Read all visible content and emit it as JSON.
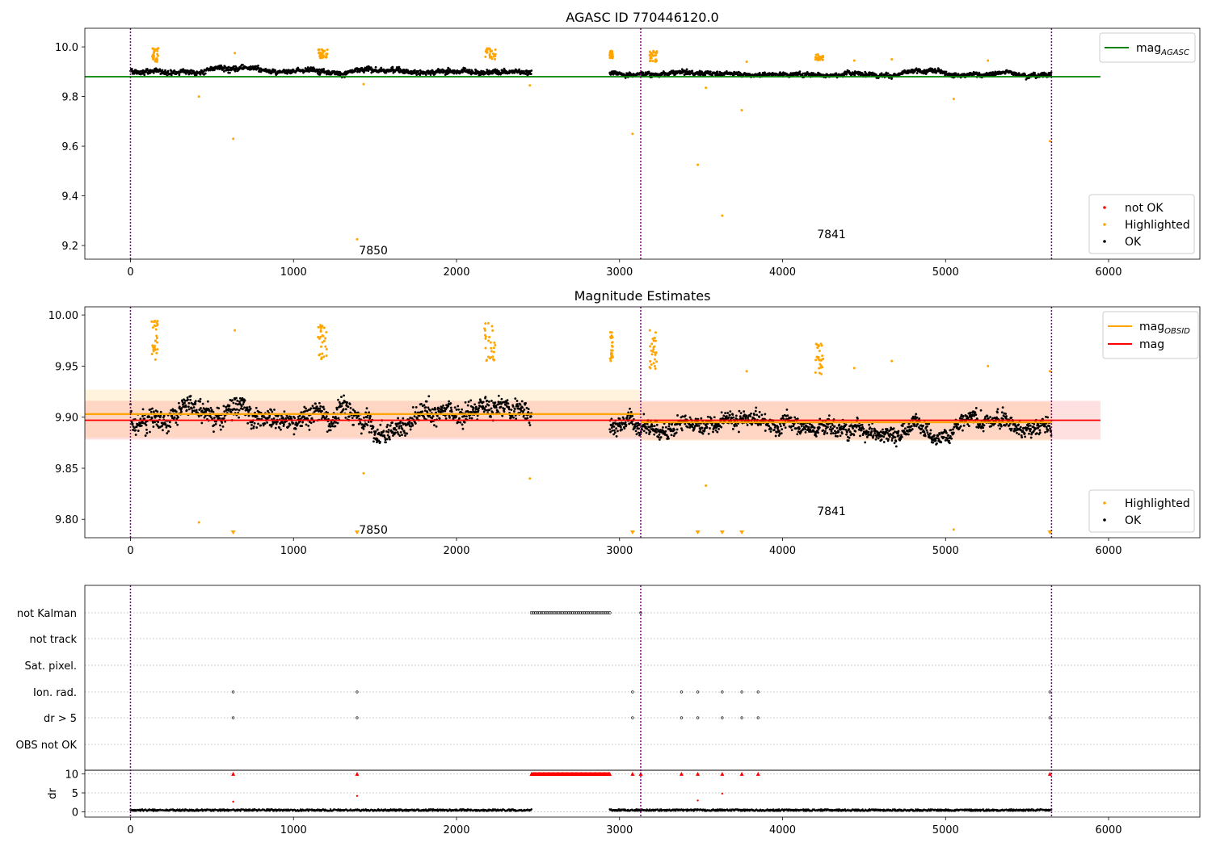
{
  "chart_data": [
    {
      "type": "scatter",
      "title": "AGASC ID 770446120.0",
      "xlim": [
        -280,
        6560
      ],
      "ylim": [
        9.145,
        10.075
      ],
      "x_ticks": [
        0,
        1000,
        2000,
        3000,
        4000,
        5000,
        6000
      ],
      "x_tick_labels": [
        "0",
        "1000",
        "2000",
        "3000",
        "4000",
        "5000",
        "6000"
      ],
      "y_ticks": [
        9.2,
        9.4,
        9.6,
        9.8,
        10.0
      ],
      "y_tick_labels": [
        "9.2",
        "9.4",
        "9.6",
        "9.8",
        "10.0"
      ],
      "obs_boundaries": [
        0,
        3130,
        5650
      ],
      "obs_labels": [
        {
          "text": "7850",
          "x": 1490,
          "y": 9.18
        },
        {
          "text": "7841",
          "x": 4300,
          "y": 9.245
        }
      ],
      "ok_segments": [
        {
          "x0": 0,
          "x1": 2460,
          "mean": 9.905,
          "spread": 0.018
        },
        {
          "x0": 2940,
          "x1": 5650,
          "mean": 9.895,
          "spread": 0.014
        }
      ],
      "highlight_clusters": [
        {
          "x0": 130,
          "x1": 170,
          "ymin": 9.94,
          "ymax": 9.995
        },
        {
          "x0": 1150,
          "x1": 1210,
          "ymin": 9.955,
          "ymax": 9.99
        },
        {
          "x0": 2170,
          "x1": 2240,
          "ymin": 9.95,
          "ymax": 9.995
        },
        {
          "x0": 2940,
          "x1": 2960,
          "ymin": 9.955,
          "ymax": 9.985
        },
        {
          "x0": 3180,
          "x1": 3230,
          "ymin": 9.94,
          "ymax": 9.985
        },
        {
          "x0": 4200,
          "x1": 4250,
          "ymin": 9.945,
          "ymax": 9.97
        }
      ],
      "highlight_points": [
        [
          420,
          9.8
        ],
        [
          630,
          9.63
        ],
        [
          640,
          9.975
        ],
        [
          1390,
          9.225
        ],
        [
          1430,
          9.85
        ],
        [
          2450,
          9.845
        ],
        [
          3080,
          9.65
        ],
        [
          3480,
          9.525
        ],
        [
          3530,
          9.835
        ],
        [
          3630,
          9.32
        ],
        [
          3750,
          9.745
        ],
        [
          3780,
          9.94
        ],
        [
          4440,
          9.945
        ],
        [
          4670,
          9.95
        ],
        [
          5050,
          9.79
        ],
        [
          5260,
          9.945
        ],
        [
          5640,
          9.62
        ]
      ],
      "mag_agasc": {
        "value": 9.88,
        "x0": -280,
        "x1": 5950,
        "color": "#008000"
      },
      "legend_lines": [
        {
          "label": "mag",
          "sub": "AGASC",
          "color": "#008000"
        }
      ],
      "legend_points": [
        {
          "label": "not OK",
          "color": "#ff0000"
        },
        {
          "label": "Highlighted",
          "color": "#ffa500"
        },
        {
          "label": "OK",
          "color": "#000000"
        }
      ]
    },
    {
      "type": "scatter",
      "title": "Magnitude Estimates",
      "xlim": [
        -280,
        6560
      ],
      "ylim": [
        9.782,
        10.008
      ],
      "x_ticks": [
        0,
        1000,
        2000,
        3000,
        4000,
        5000,
        6000
      ],
      "x_tick_labels": [
        "0",
        "1000",
        "2000",
        "3000",
        "4000",
        "5000",
        "6000"
      ],
      "y_ticks": [
        9.8,
        9.85,
        9.9,
        9.95,
        10.0
      ],
      "y_tick_labels": [
        "9.80",
        "9.85",
        "9.90",
        "9.95",
        "10.00"
      ],
      "obs_boundaries": [
        0,
        3130,
        5650
      ],
      "obs_labels": [
        {
          "text": "7850",
          "x": 1490,
          "y": 9.79
        },
        {
          "text": "7841",
          "x": 4300,
          "y": 9.808
        }
      ],
      "ok_segments": [
        {
          "x0": 0,
          "x1": 2460,
          "mean": 9.902,
          "spread": 0.018
        },
        {
          "x0": 2940,
          "x1": 5650,
          "mean": 9.893,
          "spread": 0.014
        }
      ],
      "highlight_clusters": [
        {
          "x0": 130,
          "x1": 170,
          "ymin": 9.955,
          "ymax": 9.995
        },
        {
          "x0": 1150,
          "x1": 1210,
          "ymin": 9.955,
          "ymax": 9.99
        },
        {
          "x0": 2170,
          "x1": 2240,
          "ymin": 9.955,
          "ymax": 9.995
        },
        {
          "x0": 2940,
          "x1": 2960,
          "ymin": 9.955,
          "ymax": 9.985
        },
        {
          "x0": 3180,
          "x1": 3230,
          "ymin": 9.945,
          "ymax": 9.985
        },
        {
          "x0": 4200,
          "x1": 4250,
          "ymin": 9.942,
          "ymax": 9.972
        }
      ],
      "highlight_points": [
        [
          420,
          9.797
        ],
        [
          640,
          9.985
        ],
        [
          1430,
          9.845
        ],
        [
          2450,
          9.84
        ],
        [
          3530,
          9.833
        ],
        [
          3780,
          9.945
        ],
        [
          4440,
          9.948
        ],
        [
          4670,
          9.955
        ],
        [
          5050,
          9.79
        ],
        [
          5260,
          9.95
        ],
        [
          5640,
          9.945
        ]
      ],
      "lower_limit_markers": [
        630,
        1390,
        3080,
        3480,
        3630,
        3750,
        5640
      ],
      "mag_obsid": [
        {
          "x0": -280,
          "x1": 3130,
          "value": 9.903,
          "band": [
            9.88,
            9.927
          ]
        },
        {
          "x0": 3130,
          "x1": 5650,
          "value": 9.895,
          "band": [
            9.877,
            9.915
          ]
        }
      ],
      "mag": {
        "value": 9.897,
        "band": [
          9.878,
          9.916
        ],
        "x0": -280,
        "x1": 5950
      },
      "legend_lines": [
        {
          "label": "mag",
          "sub": "OBSID",
          "color": "#ffa500"
        },
        {
          "label": "mag",
          "sub": "",
          "color": "#ff0000"
        }
      ],
      "legend_points": [
        {
          "label": "Highlighted",
          "color": "#ffa500"
        },
        {
          "label": "OK",
          "color": "#000000"
        }
      ]
    },
    {
      "type": "scatter",
      "title": "",
      "xlim": [
        -280,
        6560
      ],
      "x_ticks": [
        0,
        1000,
        2000,
        3000,
        4000,
        5000,
        6000
      ],
      "x_tick_labels": [
        "0",
        "1000",
        "2000",
        "3000",
        "4000",
        "5000",
        "6000"
      ],
      "flag_rows": [
        "not Kalman",
        "not track",
        "Sat. pixel.",
        "Ion. rad.",
        "dr > 5",
        "OBS not OK"
      ],
      "flags": {
        "not Kalman": {
          "ranges": [
            [
              2460,
              2940
            ]
          ],
          "points": [
            3130
          ]
        },
        "Ion. rad.": {
          "points": [
            630,
            1390,
            3080,
            3380,
            3480,
            3630,
            3750,
            3850,
            5640
          ]
        },
        "dr > 5": {
          "points": [
            630,
            1390,
            3080,
            3380,
            3480,
            3630,
            3750,
            3850,
            5640
          ]
        }
      },
      "dr_ylabel": "dr",
      "dr_ylim": [
        -0.5,
        10.5
      ],
      "dr_ticks": [
        0,
        5,
        10
      ],
      "dr_tick_labels": [
        "0",
        "5",
        "10"
      ],
      "dr_baseline_segments": [
        [
          0,
          2460
        ],
        [
          2940,
          5650
        ]
      ],
      "dr_clipped_markers": {
        "range": [
          2460,
          2940
        ],
        "points": [
          630,
          1390,
          3080,
          3130,
          3380,
          3480,
          3630,
          3750,
          3850,
          5640
        ]
      },
      "dr_outliers": [
        [
          630,
          2.7
        ],
        [
          1390,
          4.2
        ],
        [
          3480,
          3.0
        ],
        [
          3630,
          4.8
        ]
      ],
      "obs_boundaries": [
        0,
        3130,
        5650
      ]
    }
  ]
}
